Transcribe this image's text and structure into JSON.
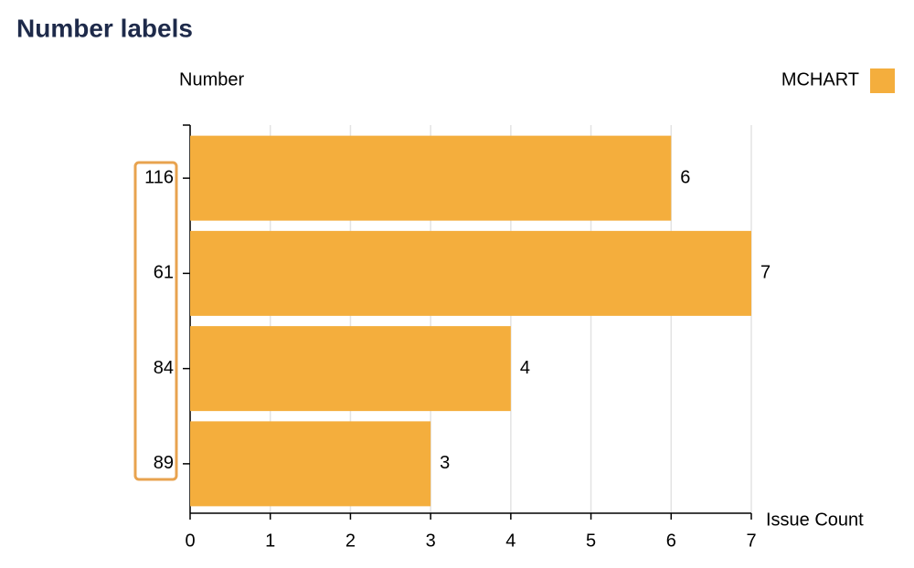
{
  "chart_data": {
    "type": "barh",
    "title": "Number labels",
    "y_label": "Number",
    "x_label": "Issue Count",
    "categories": [
      "116",
      "61",
      "84",
      "89"
    ],
    "series": [
      {
        "name": "MCHART",
        "color": "#f4ae3d",
        "values": [
          6,
          7,
          4,
          3
        ]
      }
    ],
    "xlim": [
      0,
      7
    ],
    "xticks": [
      0,
      1,
      2,
      3,
      4,
      5,
      6,
      7
    ],
    "grid": true,
    "legend": "top-right"
  }
}
